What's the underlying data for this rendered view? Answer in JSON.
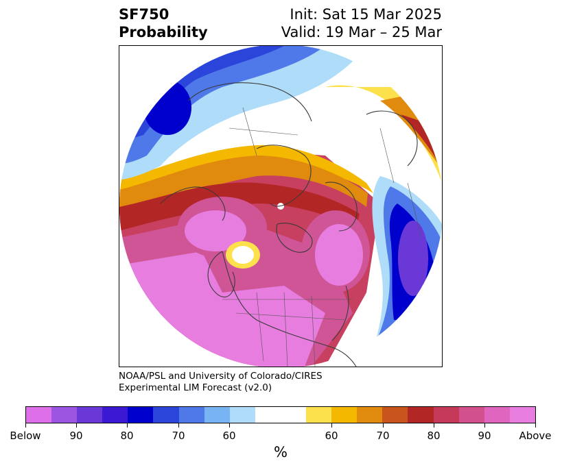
{
  "header": {
    "variable": "SF750",
    "quantity": "Probability",
    "init": "Init: Sat 15 Mar 2025",
    "valid": "Valid: 19 Mar – 25 Mar"
  },
  "credit": {
    "line1": "NOAA/PSL and University of Colorado/CIRES",
    "line2": "Experimental LIM Forecast (v2.0)"
  },
  "map": {
    "projection": "north-polar-stereographic",
    "features": [
      "coastlines",
      "country-borders",
      "us-state-borders",
      "canada-province-borders"
    ],
    "field": "probability"
  },
  "colorbar": {
    "unit_label": "%",
    "colors": [
      "#dd70e8",
      "#9c55e0",
      "#6b38d8",
      "#3b19d3",
      "#0000cc",
      "#2b45db",
      "#4f79e8",
      "#78b3f4",
      "#aedcf9",
      "#ffffff",
      "#ffffff",
      "#fde14c",
      "#f5b800",
      "#e08b0e",
      "#c8551b",
      "#b22626",
      "#c53a58",
      "#d3508f",
      "#df65bf",
      "#e67ddf"
    ],
    "tick_labels": [
      "Below",
      "90",
      "80",
      "70",
      "60",
      "60",
      "70",
      "80",
      "90",
      "Above"
    ]
  }
}
